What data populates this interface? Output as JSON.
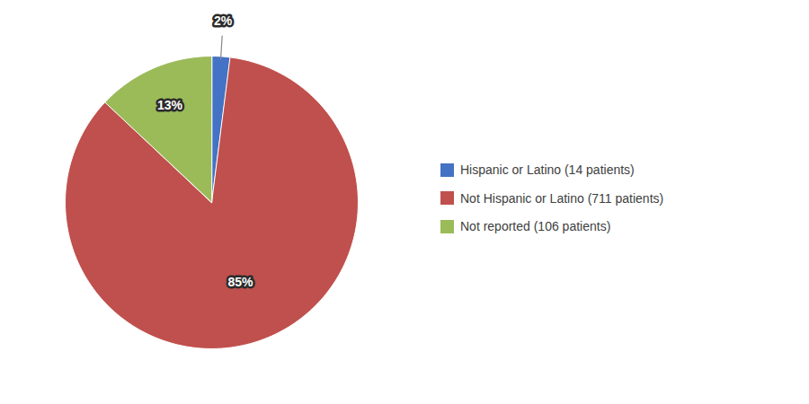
{
  "chart_data": {
    "type": "pie",
    "categories": [
      "Hispanic or Latino (14 patients)",
      "Not Hispanic or Latino (711 patients)",
      "Not reported (106 patients)"
    ],
    "values": [
      2,
      85,
      13
    ],
    "value_labels": [
      "2%",
      "85%",
      "13%"
    ],
    "colors": [
      "#4472C4",
      "#C0504D",
      "#9BBB59"
    ],
    "data_labels": true,
    "legend": "right"
  }
}
